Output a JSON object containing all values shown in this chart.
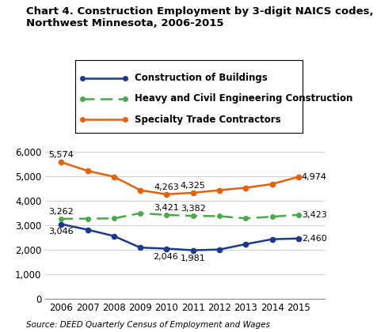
{
  "title": "Chart 4. Construction Employment by 3-digit NAICS codes,\nNorthwest Minnesota, 2006-2015",
  "years": [
    2006,
    2007,
    2008,
    2009,
    2010,
    2011,
    2012,
    2013,
    2014,
    2015
  ],
  "construction_of_buildings": [
    3046,
    2820,
    2560,
    2090,
    2046,
    1981,
    2010,
    2230,
    2430,
    2460
  ],
  "heavy_civil": [
    3262,
    3270,
    3280,
    3490,
    3421,
    3382,
    3370,
    3280,
    3350,
    3423
  ],
  "specialty_trade": [
    5574,
    5220,
    4980,
    4430,
    4263,
    4325,
    4430,
    4530,
    4680,
    4974
  ],
  "colors": {
    "construction_of_buildings": "#1a3a8c",
    "heavy_civil": "#4aaa4a",
    "specialty_trade": "#e8600a"
  },
  "ylim": [
    0,
    6500
  ],
  "yticks": [
    0,
    1000,
    2000,
    3000,
    4000,
    5000,
    6000
  ],
  "source": "Source: DEED Quarterly Census of Employment and Wages",
  "legend_labels": [
    "Construction of Buildings",
    "Heavy and Civil Engineering Construction",
    "Specialty Trade Contractors"
  ],
  "ann_fontsize": 8.0
}
